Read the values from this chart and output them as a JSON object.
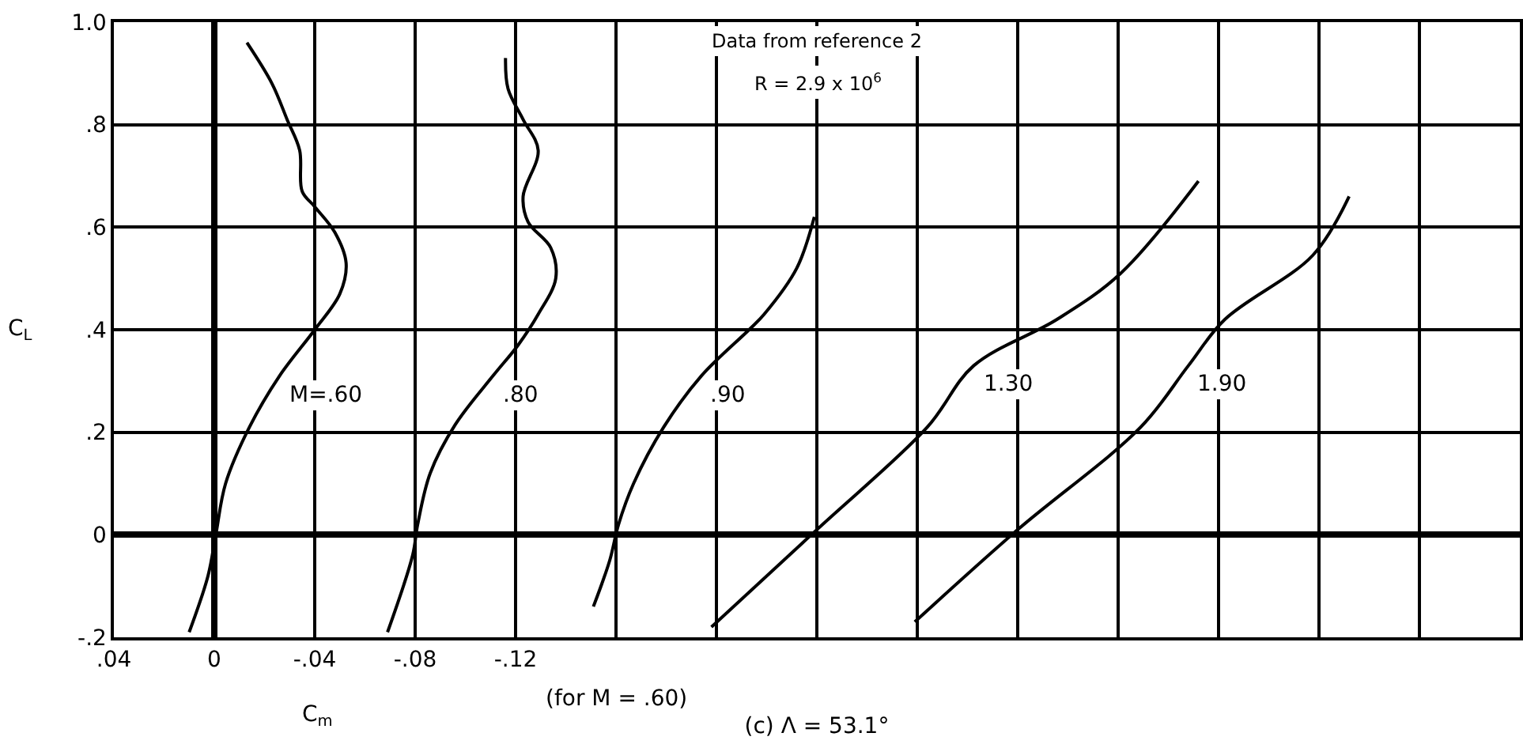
{
  "chart_data": {
    "type": "line",
    "title": "(c) Λ = 53.1°",
    "xlabel": "C$_{m}$",
    "ylabel": "C$_{L}$",
    "annotations": [
      "Data from reference 2",
      "R = 2.9 x 10$^{6}$",
      "(for M = .60)"
    ],
    "series": [
      {
        "name": "M=.60",
        "color": "#000000",
        "x": [
          -0.013,
          -0.023,
          -0.029,
          -0.034,
          -0.035,
          -0.04,
          -0.048,
          -0.0525,
          -0.05,
          -0.04,
          -0.026,
          -0.014,
          -0.0045,
          -0.0006,
          0.0025,
          0.01
        ],
        "values": [
          0.96,
          0.88,
          0.81,
          0.75,
          0.67,
          0.64,
          0.59,
          0.53,
          0.47,
          0.4,
          0.31,
          0.21,
          0.1,
          0,
          -0.08,
          -0.19
        ]
      },
      {
        "name": ".80",
        "color": "#000000",
        "x": [
          -0.116,
          -0.117,
          -0.123,
          -0.129,
          -0.123,
          -0.125,
          -0.134,
          -0.136,
          -0.129,
          -0.121,
          -0.111,
          -0.096,
          -0.086,
          -0.081,
          -0.079,
          -0.069
        ],
        "values": [
          0.93,
          0.87,
          0.81,
          0.75,
          0.66,
          0.61,
          0.56,
          0.5,
          0.43,
          0.37,
          0.31,
          0.215,
          0.12,
          0.02,
          -0.04,
          -0.19
        ]
      },
      {
        "name": ".90",
        "color": "#000000",
        "x": [
          -0.239,
          -0.232,
          -0.219,
          -0.213,
          -0.194,
          -0.179,
          -0.167,
          -0.161,
          -0.1575,
          -0.151
        ],
        "values": [
          0.62,
          0.52,
          0.43,
          0.4,
          0.31,
          0.21,
          0.1,
          0.02,
          -0.05,
          -0.14
        ]
      },
      {
        "name": "1.30",
        "color": "#000000",
        "x": [
          -0.392,
          -0.361,
          -0.3356,
          -0.3025,
          -0.284,
          -0.24,
          -0.198
        ],
        "values": [
          0.69,
          0.51,
          0.42,
          0.33,
          0.21,
          0.01,
          -0.18
        ]
      },
      {
        "name": "1.90",
        "color": "#000000",
        "x": [
          -0.452,
          -0.4375,
          -0.4025,
          -0.388,
          -0.369,
          -0.32,
          -0.279
        ],
        "values": [
          0.66,
          0.545,
          0.42,
          0.33,
          0.21,
          0.01,
          -0.17
        ]
      }
    ],
    "xlim": [
      0.04,
      -0.52
    ],
    "xticks": [
      {
        "value": 0.04,
        "label": ".04"
      },
      0,
      {
        "value": -0.04,
        "label": "-.04"
      },
      {
        "value": -0.08,
        "label": "-.08"
      },
      {
        "value": -0.12,
        "label": "-.12"
      },
      {
        "value": -0.16,
        "label": null
      },
      {
        "value": -0.2,
        "label": null
      },
      {
        "value": -0.24,
        "label": null
      },
      {
        "value": -0.28,
        "label": null
      },
      {
        "value": -0.32,
        "label": null
      },
      {
        "value": -0.36,
        "label": null
      },
      {
        "value": -0.4,
        "label": null
      },
      {
        "value": -0.44,
        "label": null
      },
      {
        "value": -0.48,
        "label": null
      }
    ],
    "ylim": [
      -0.2,
      1.0
    ],
    "yticks": [
      {
        "value": -0.2,
        "label": "-.2"
      },
      0,
      {
        "value": 0.2,
        "label": ".2"
      },
      {
        "value": 0.4,
        "label": ".4"
      },
      {
        "value": 0.6,
        "label": ".6"
      },
      {
        "value": 0.8,
        "label": ".8"
      },
      {
        "value": 1.0,
        "label": "1.0"
      }
    ],
    "grid": true,
    "legend": false,
    "marker": "none",
    "line_style": "solid"
  }
}
